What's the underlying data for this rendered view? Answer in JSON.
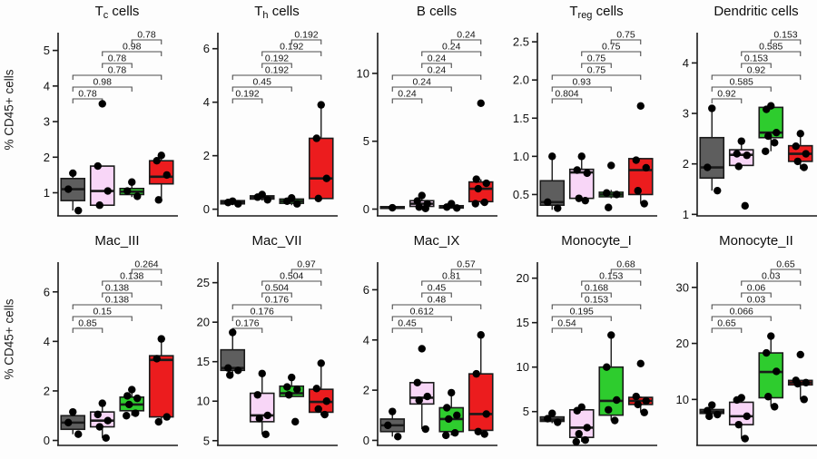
{
  "figure": {
    "ylabel": "% CD45+ cells",
    "background": "#fdfdfd",
    "axis_color": "#1a1a1a",
    "bracket_color": "#4d4d4d",
    "point_color": "#000000",
    "group_colors": [
      {
        "name": "gray",
        "fill": "#5e5e5e"
      },
      {
        "name": "pink",
        "fill": "#f8d6f7"
      },
      {
        "name": "green",
        "fill": "#2ecc2e"
      },
      {
        "name": "red",
        "fill": "#ec1c1e"
      }
    ],
    "comparison_pairs": [
      [
        0,
        1
      ],
      [
        0,
        2
      ],
      [
        0,
        3
      ],
      [
        1,
        2
      ],
      [
        1,
        3
      ],
      [
        2,
        3
      ]
    ]
  },
  "chart_data": [
    {
      "type": "box",
      "id": "tc-cells",
      "title": [
        [
          "T",
          "n"
        ],
        [
          "c",
          "s"
        ],
        [
          " cells",
          "n"
        ]
      ],
      "ylim": [
        0.35,
        5.5
      ],
      "yticks": {
        "values": [
          1,
          2,
          3,
          4,
          5
        ],
        "labels": [
          "1",
          "2",
          "3",
          "4",
          "5"
        ]
      },
      "series": [
        {
          "lo": 0.5,
          "q1": 0.78,
          "med": 1.1,
          "q3": 1.4,
          "hi": 1.55,
          "points": [
            1.55,
            1.1,
            0.5
          ]
        },
        {
          "lo": 0.65,
          "q1": 0.65,
          "med": 1.05,
          "q3": 1.75,
          "hi": 1.75,
          "points": [
            3.5,
            1.75,
            1.05,
            0.65
          ]
        },
        {
          "lo": 0.88,
          "q1": 0.95,
          "med": 1.03,
          "q3": 1.12,
          "hi": 1.3,
          "points": [
            1.3,
            1.05,
            0.9
          ]
        },
        {
          "lo": 0.8,
          "q1": 1.25,
          "med": 1.45,
          "q3": 1.9,
          "hi": 2.05,
          "points": [
            2.05,
            1.9,
            1.5,
            0.8
          ]
        }
      ],
      "p_values": [
        "0.78",
        "0.98",
        "0.78",
        "0.78",
        "0.98",
        "0.78"
      ]
    },
    {
      "type": "box",
      "id": "th-cells",
      "title": [
        [
          "T",
          "n"
        ],
        [
          "h",
          "s"
        ],
        [
          " cells",
          "n"
        ]
      ],
      "ylim": [
        -0.25,
        6.6
      ],
      "yticks": {
        "values": [
          0,
          2,
          4,
          6
        ],
        "labels": [
          "0",
          "2",
          "4",
          "6"
        ]
      },
      "series": [
        {
          "lo": 0.15,
          "q1": 0.2,
          "med": 0.25,
          "q3": 0.32,
          "hi": 0.35,
          "points": [
            0.3,
            0.25,
            0.2
          ]
        },
        {
          "lo": 0.32,
          "q1": 0.38,
          "med": 0.45,
          "q3": 0.5,
          "hi": 0.55,
          "points": [
            0.55,
            0.45,
            0.35
          ]
        },
        {
          "lo": 0.15,
          "q1": 0.22,
          "med": 0.3,
          "q3": 0.38,
          "hi": 0.45,
          "points": [
            0.42,
            0.3,
            0.2
          ]
        },
        {
          "lo": 0.35,
          "q1": 0.4,
          "med": 1.15,
          "q3": 2.65,
          "hi": 3.9,
          "points": [
            3.9,
            2.65,
            1.15,
            0.4
          ]
        }
      ],
      "p_values": [
        "0.192",
        "0.45",
        "0.192",
        "0.192",
        "0.192",
        "0.192"
      ]
    },
    {
      "type": "box",
      "id": "b-cells",
      "title": [
        [
          "B cells",
          "n"
        ]
      ],
      "ylim": [
        -0.5,
        13
      ],
      "yticks": {
        "values": [
          0,
          5,
          10
        ],
        "labels": [
          "0",
          "5",
          "10"
        ]
      },
      "series": [
        {
          "lo": 0.03,
          "q1": 0.05,
          "med": 0.1,
          "q3": 0.18,
          "hi": 0.25,
          "points": [
            0.1
          ]
        },
        {
          "lo": 0.05,
          "q1": 0.2,
          "med": 0.4,
          "q3": 0.62,
          "hi": 1.0,
          "points": [
            1.0,
            0.6,
            0.4,
            0.15,
            0.05
          ]
        },
        {
          "lo": 0.05,
          "q1": 0.08,
          "med": 0.15,
          "q3": 0.25,
          "hi": 0.4,
          "points": [
            0.4,
            0.15,
            0.08
          ]
        },
        {
          "lo": 0.4,
          "q1": 0.55,
          "med": 1.5,
          "q3": 2.0,
          "hi": 2.2,
          "points": [
            7.8,
            2.2,
            1.9,
            1.5,
            0.5,
            0.4
          ]
        }
      ],
      "p_values": [
        "0.24",
        "0.24",
        "0.24",
        "0.24",
        "0.24",
        "0.24"
      ]
    },
    {
      "type": "box",
      "id": "treg-cells",
      "title": [
        [
          "T",
          "n"
        ],
        [
          "reg",
          "s"
        ],
        [
          " cells",
          "n"
        ]
      ],
      "ylim": [
        0.22,
        2.62
      ],
      "yticks": {
        "values": [
          0.5,
          1.0,
          1.5,
          2.0,
          2.5
        ],
        "labels": [
          "0.5",
          "1.0",
          "1.5",
          "2.0",
          "2.5"
        ]
      },
      "series": [
        {
          "lo": 0.3,
          "q1": 0.36,
          "med": 0.4,
          "q3": 0.68,
          "hi": 1.0,
          "points": [
            1.0,
            0.4,
            0.32
          ]
        },
        {
          "lo": 0.42,
          "q1": 0.45,
          "med": 0.79,
          "q3": 0.83,
          "hi": 1.0,
          "points": [
            1.0,
            0.82,
            0.78,
            0.45,
            0.42
          ]
        },
        {
          "lo": 0.45,
          "q1": 0.47,
          "med": 0.5,
          "q3": 0.53,
          "hi": 0.56,
          "points": [
            0.88,
            0.52,
            0.5,
            0.33
          ]
        },
        {
          "lo": 0.38,
          "q1": 0.5,
          "med": 0.82,
          "q3": 0.97,
          "hi": 0.98,
          "points": [
            1.66,
            0.95,
            0.85,
            0.55,
            0.38
          ]
        }
      ],
      "p_values": [
        "0.804",
        "0.93",
        "0.75",
        "0.75",
        "0.75",
        "0.75"
      ]
    },
    {
      "type": "box",
      "id": "dendritic-cells",
      "title": [
        [
          "Dendritic cells",
          "n"
        ]
      ],
      "ylim": [
        0.97,
        4.6
      ],
      "yticks": {
        "values": [
          1,
          2,
          3,
          4
        ],
        "labels": [
          "1",
          "2",
          "3",
          "4"
        ]
      },
      "series": [
        {
          "lo": 1.47,
          "q1": 1.72,
          "med": 1.93,
          "q3": 2.52,
          "hi": 3.1,
          "points": [
            3.1,
            1.93,
            1.47
          ]
        },
        {
          "lo": 1.95,
          "q1": 1.97,
          "med": 2.18,
          "q3": 2.28,
          "hi": 2.45,
          "points": [
            2.45,
            2.2,
            2.17,
            1.95,
            1.17
          ]
        },
        {
          "lo": 2.25,
          "q1": 2.52,
          "med": 2.62,
          "q3": 3.12,
          "hi": 3.17,
          "points": [
            3.15,
            3.08,
            2.62,
            2.55,
            2.42,
            2.25
          ]
        },
        {
          "lo": 1.9,
          "q1": 2.05,
          "med": 2.2,
          "q3": 2.36,
          "hi": 2.6,
          "points": [
            2.6,
            2.35,
            2.2,
            2.05,
            1.93
          ]
        }
      ],
      "p_values": [
        "0.92",
        "0.585",
        "0.92",
        "0.153",
        "0.585",
        "0.153"
      ]
    },
    {
      "type": "box",
      "id": "mac-iii",
      "title": [
        [
          "Mac_III",
          "n"
        ]
      ],
      "ylim": [
        -0.2,
        7.2
      ],
      "yticks": {
        "values": [
          0,
          2,
          4,
          6
        ],
        "labels": [
          "0",
          "2",
          "4",
          "6"
        ]
      },
      "series": [
        {
          "lo": 0.25,
          "q1": 0.45,
          "med": 0.72,
          "q3": 1.0,
          "hi": 1.15,
          "points": [
            1.15,
            0.72,
            0.25
          ]
        },
        {
          "lo": 0.1,
          "q1": 0.55,
          "med": 0.8,
          "q3": 1.15,
          "hi": 1.5,
          "points": [
            1.5,
            1.05,
            0.8,
            0.55,
            0.1
          ]
        },
        {
          "lo": 1.0,
          "q1": 1.2,
          "med": 1.45,
          "q3": 1.75,
          "hi": 2.05,
          "points": [
            2.05,
            1.8,
            1.7,
            1.45,
            1.1,
            1.0
          ]
        },
        {
          "lo": 0.75,
          "q1": 0.95,
          "med": 3.25,
          "q3": 3.42,
          "hi": 4.1,
          "points": [
            4.1,
            3.3,
            0.95,
            0.75
          ]
        }
      ],
      "p_values": [
        "0.85",
        "0.15",
        "0.138",
        "0.138",
        "0.138",
        "0.264"
      ]
    },
    {
      "type": "box",
      "id": "mac-vii",
      "title": [
        [
          "Mac_VII",
          "n"
        ]
      ],
      "ylim": [
        4.4,
        27.6
      ],
      "yticks": {
        "values": [
          5,
          10,
          15,
          20,
          25
        ],
        "labels": [
          "5",
          "10",
          "15",
          "20",
          "25"
        ]
      },
      "series": [
        {
          "lo": 13.3,
          "q1": 13.9,
          "med": 14.2,
          "q3": 16.5,
          "hi": 18.7,
          "points": [
            18.7,
            14.2,
            13.9,
            13.3
          ]
        },
        {
          "lo": 5.8,
          "q1": 7.4,
          "med": 8.2,
          "q3": 11.0,
          "hi": 13.5,
          "points": [
            13.5,
            10.8,
            8.2,
            7.8,
            5.8
          ]
        },
        {
          "lo": 10.5,
          "q1": 10.6,
          "med": 11.0,
          "q3": 11.9,
          "hi": 13.0,
          "points": [
            13.0,
            11.8,
            11.5,
            10.8,
            7.4
          ]
        },
        {
          "lo": 8.2,
          "q1": 8.6,
          "med": 9.9,
          "q3": 11.5,
          "hi": 14.8,
          "points": [
            14.8,
            11.6,
            10.0,
            9.0,
            8.3
          ]
        }
      ],
      "p_values": [
        "0.176",
        "0.176",
        "0.176",
        "0.504",
        "0.504",
        "0.97"
      ]
    },
    {
      "type": "box",
      "id": "mac-ix",
      "title": [
        [
          "Mac_IX",
          "n"
        ]
      ],
      "ylim": [
        -0.2,
        7.1
      ],
      "yticks": {
        "values": [
          0,
          2,
          4,
          6
        ],
        "labels": [
          "0",
          "2",
          "4",
          "6"
        ]
      },
      "series": [
        {
          "lo": 0.15,
          "q1": 0.35,
          "med": 0.6,
          "q3": 0.85,
          "hi": 1.15,
          "points": [
            1.15,
            0.6,
            0.15
          ]
        },
        {
          "lo": 0.45,
          "q1": 1.45,
          "med": 1.7,
          "q3": 2.3,
          "hi": 2.35,
          "points": [
            3.65,
            2.3,
            1.75,
            1.6,
            0.45
          ]
        },
        {
          "lo": 0.2,
          "q1": 0.35,
          "med": 0.85,
          "q3": 1.3,
          "hi": 1.9,
          "points": [
            1.9,
            1.3,
            1.0,
            0.85,
            0.3,
            0.2
          ]
        },
        {
          "lo": 0.25,
          "q1": 0.4,
          "med": 1.05,
          "q3": 2.65,
          "hi": 4.2,
          "points": [
            4.2,
            2.65,
            1.05,
            0.35,
            0.25
          ]
        }
      ],
      "p_values": [
        "0.45",
        "0.612",
        "0.48",
        "0.45",
        "0.81",
        "0.57"
      ]
    },
    {
      "type": "box",
      "id": "monocyte-i",
      "title": [
        [
          "Monocyte_I",
          "n"
        ]
      ],
      "ylim": [
        1.2,
        21.8
      ],
      "yticks": {
        "values": [
          5,
          10,
          15,
          20
        ],
        "labels": [
          "5",
          "10",
          "15",
          "20"
        ]
      },
      "series": [
        {
          "lo": 3.7,
          "q1": 3.9,
          "med": 4.1,
          "q3": 4.4,
          "hi": 4.8,
          "points": [
            4.8,
            4.2,
            3.8
          ]
        },
        {
          "lo": 1.6,
          "q1": 2.1,
          "med": 3.2,
          "q3": 5.2,
          "hi": 5.5,
          "points": [
            5.5,
            5.1,
            3.2,
            2.5,
            1.8,
            1.6
          ]
        },
        {
          "lo": 4.0,
          "q1": 4.6,
          "med": 6.2,
          "q3": 10.0,
          "hi": 13.6,
          "points": [
            13.6,
            10.0,
            6.3,
            5.2,
            4.0
          ]
        },
        {
          "lo": 4.9,
          "q1": 5.8,
          "med": 6.2,
          "q3": 6.6,
          "hi": 6.7,
          "points": [
            10.4,
            6.7,
            6.2,
            5.8,
            4.9
          ]
        }
      ],
      "p_values": [
        "0.54",
        "0.195",
        "0.153",
        "0.168",
        "0.153",
        "0.68"
      ]
    },
    {
      "type": "box",
      "id": "monocyte-ii",
      "title": [
        [
          "Monocyte_II",
          "n"
        ]
      ],
      "ylim": [
        1.8,
        34.5
      ],
      "yticks": {
        "values": [
          10,
          20,
          30
        ],
        "labels": [
          "10",
          "20",
          "30"
        ]
      },
      "series": [
        {
          "lo": 7.0,
          "q1": 7.5,
          "med": 7.8,
          "q3": 8.2,
          "hi": 9.0,
          "points": [
            9.0,
            8.0,
            7.3,
            7.0
          ]
        },
        {
          "lo": 3.0,
          "q1": 5.5,
          "med": 7.0,
          "q3": 9.5,
          "hi": 10.3,
          "points": [
            10.3,
            9.9,
            7.0,
            5.5,
            3.0
          ]
        },
        {
          "lo": 8.7,
          "q1": 10.3,
          "med": 14.9,
          "q3": 18.3,
          "hi": 21.3,
          "points": [
            21.3,
            18.3,
            15.0,
            10.5,
            8.7
          ]
        },
        {
          "lo": 10.0,
          "q1": 12.6,
          "med": 13.0,
          "q3": 13.4,
          "hi": 13.5,
          "points": [
            18.0,
            13.4,
            13.0,
            12.8,
            10.0
          ]
        }
      ],
      "p_values": [
        "0.65",
        "0.066",
        "0.03",
        "0.06",
        "0.03",
        "0.65"
      ]
    }
  ]
}
